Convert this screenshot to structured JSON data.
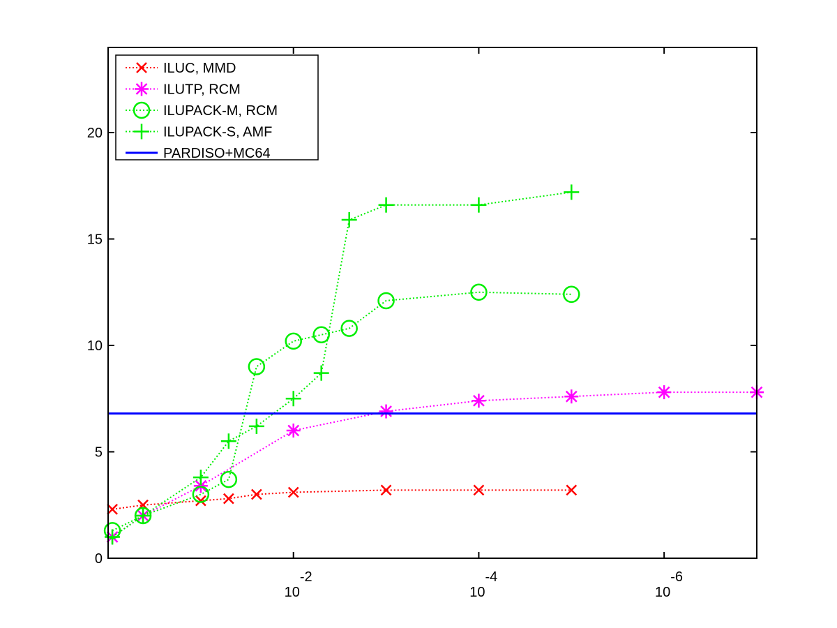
{
  "chart_data": {
    "type": "line",
    "x_scale": "log10-reversed",
    "xlim": [
      1.0,
      1e-07
    ],
    "ylim": [
      0,
      24
    ],
    "grid": false,
    "legend_position": "top-left",
    "x_ticks": [
      {
        "value": 0.01,
        "base": "10",
        "exp": "-2"
      },
      {
        "value": 0.0001,
        "base": "10",
        "exp": "-4"
      },
      {
        "value": 1e-06,
        "base": "10",
        "exp": "-6"
      }
    ],
    "y_ticks": [
      {
        "value": 0,
        "label": "0"
      },
      {
        "value": 5,
        "label": "5"
      },
      {
        "value": 10,
        "label": "10"
      },
      {
        "value": 15,
        "label": "15"
      },
      {
        "value": 20,
        "label": "20"
      }
    ],
    "series": [
      {
        "name": "ILUC, MMD",
        "color": "#ff0000",
        "marker": "x-mark",
        "line": "dotted",
        "points": [
          {
            "x": 0.9,
            "y": 2.3
          },
          {
            "x": 0.42,
            "y": 2.5
          },
          {
            "x": 0.1,
            "y": 2.7
          },
          {
            "x": 0.05,
            "y": 2.8
          },
          {
            "x": 0.025,
            "y": 3.0
          },
          {
            "x": 0.01,
            "y": 3.1
          },
          {
            "x": 0.001,
            "y": 3.2
          },
          {
            "x": 0.0001,
            "y": 3.2
          },
          {
            "x": 1e-05,
            "y": 3.2
          }
        ]
      },
      {
        "name": "ILUTP, RCM",
        "color": "#ff00ff",
        "marker": "asterisk",
        "line": "dotted",
        "points": [
          {
            "x": 0.9,
            "y": 1.0
          },
          {
            "x": 0.42,
            "y": 2.0
          },
          {
            "x": 0.1,
            "y": 3.4
          },
          {
            "x": 0.01,
            "y": 6.0
          },
          {
            "x": 0.001,
            "y": 6.9
          },
          {
            "x": 0.0001,
            "y": 7.4
          },
          {
            "x": 1e-05,
            "y": 7.6
          },
          {
            "x": 1e-06,
            "y": 7.8
          },
          {
            "x": 1e-07,
            "y": 7.8
          }
        ]
      },
      {
        "name": "ILUPACK-M, RCM",
        "color": "#00ee00",
        "marker": "circle",
        "line": "dotted",
        "points": [
          {
            "x": 0.9,
            "y": 1.3
          },
          {
            "x": 0.42,
            "y": 2.0
          },
          {
            "x": 0.1,
            "y": 3.0
          },
          {
            "x": 0.05,
            "y": 3.7
          },
          {
            "x": 0.025,
            "y": 9.0
          },
          {
            "x": 0.01,
            "y": 10.2
          },
          {
            "x": 0.005,
            "y": 10.5
          },
          {
            "x": 0.0025,
            "y": 10.8
          },
          {
            "x": 0.001,
            "y": 12.1
          },
          {
            "x": 0.0001,
            "y": 12.5
          },
          {
            "x": 1e-05,
            "y": 12.4
          }
        ]
      },
      {
        "name": "ILUPACK-S, AMF",
        "color": "#00ee00",
        "marker": "plus",
        "line": "dotted",
        "points": [
          {
            "x": 0.9,
            "y": 1.0
          },
          {
            "x": 0.42,
            "y": 2.0
          },
          {
            "x": 0.1,
            "y": 3.8
          },
          {
            "x": 0.05,
            "y": 5.5
          },
          {
            "x": 0.025,
            "y": 6.2
          },
          {
            "x": 0.01,
            "y": 7.5
          },
          {
            "x": 0.005,
            "y": 8.7
          },
          {
            "x": 0.0025,
            "y": 15.9
          },
          {
            "x": 0.001,
            "y": 16.6
          },
          {
            "x": 0.0001,
            "y": 16.6
          },
          {
            "x": 1e-05,
            "y": 17.2
          }
        ]
      },
      {
        "name": "PARDISO+MC64",
        "color": "#0000ff",
        "marker": "none",
        "line": "solid",
        "points": [
          {
            "x": 1.0,
            "y": 6.8
          },
          {
            "x": 1e-07,
            "y": 6.8
          }
        ]
      }
    ]
  }
}
